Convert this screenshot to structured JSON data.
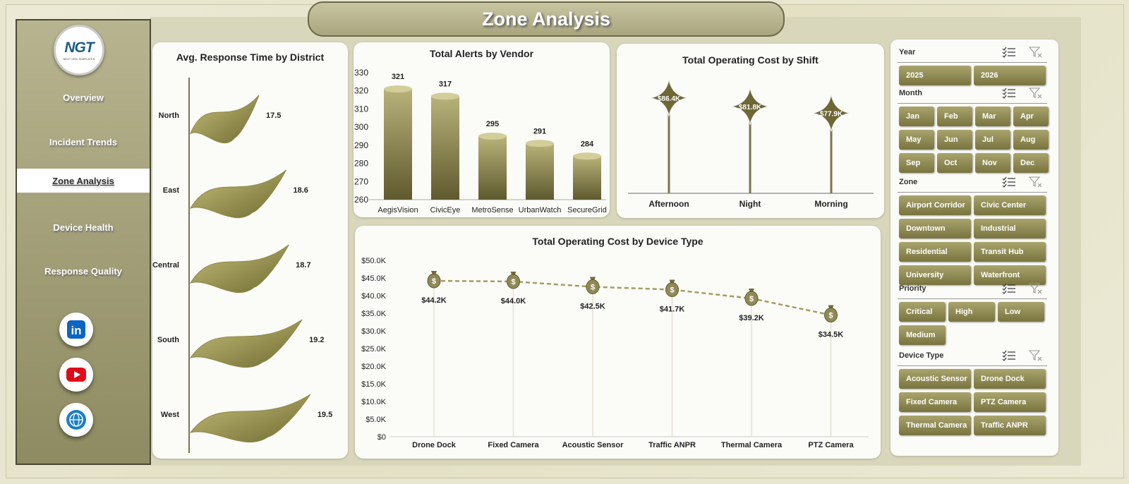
{
  "header": {
    "title": "Zone Analysis"
  },
  "logo": {
    "text": "NGT",
    "tagline": "NEXT GEN TEMPLATES"
  },
  "sidebar": {
    "items": [
      {
        "label": "Overview",
        "active": false
      },
      {
        "label": "Incident Trends",
        "active": false
      },
      {
        "label": "Zone Analysis",
        "active": true
      },
      {
        "label": "Device Health",
        "active": false
      },
      {
        "label": "Response Quality",
        "active": false
      }
    ],
    "social": [
      {
        "icon": "linkedin-icon",
        "text": "in",
        "color": "#0a66c2"
      },
      {
        "icon": "youtube-icon",
        "color": "#e10b17"
      },
      {
        "icon": "globe-icon",
        "color": "#1b7fc4"
      }
    ]
  },
  "colors": {
    "accent": "#9e9a5a",
    "accent_dark": "#6d6836",
    "line": "#a39d62"
  },
  "chart_data": [
    {
      "id": "response",
      "type": "bar",
      "title": "Avg. Response Time by District",
      "orientation": "horizontal",
      "categories": [
        "North",
        "East",
        "Central",
        "South",
        "West"
      ],
      "values": [
        17.5,
        18.6,
        18.7,
        19.2,
        19.5
      ],
      "labels": [
        "17.5",
        "18.6",
        "18.7",
        "19.2",
        "19.5"
      ]
    },
    {
      "id": "alerts",
      "type": "bar",
      "title": "Total Alerts by Vendor",
      "categories": [
        "AegisVision",
        "CivicEye",
        "MetroSense",
        "UrbanWatch",
        "SecureGrid"
      ],
      "values": [
        321,
        317,
        295,
        291,
        284
      ],
      "ylim": [
        260,
        330
      ],
      "yticks": [
        "260",
        "270",
        "280",
        "290",
        "300",
        "310",
        "320",
        "330"
      ]
    },
    {
      "id": "shift",
      "type": "bar",
      "title": "Total Operating Cost by Shift",
      "categories": [
        "Afternoon",
        "Night",
        "Morning"
      ],
      "values": [
        86.4,
        81.8,
        77.9
      ],
      "labels": [
        "$86.4K",
        "$81.8K",
        "$77.9K"
      ]
    },
    {
      "id": "device",
      "type": "line",
      "title": "Total Operating Cost by Device Type",
      "categories": [
        "Drone Dock",
        "Fixed Camera",
        "Acoustic Sensor",
        "Traffic ANPR",
        "Thermal Camera",
        "PTZ Camera"
      ],
      "values": [
        44.2,
        44.0,
        42.5,
        41.7,
        39.2,
        34.5
      ],
      "labels": [
        "$44.2K",
        "$44.0K",
        "$42.5K",
        "$41.7K",
        "$39.2K",
        "$34.5K"
      ],
      "ylim": [
        0,
        50
      ],
      "yticks": [
        "$0",
        "$5.0K",
        "$10.0K",
        "$15.0K",
        "$20.0K",
        "$25.0K",
        "$30.0K",
        "$35.0K",
        "$40.0K",
        "$45.0K",
        "$50.0K"
      ],
      "marker_icon": "money-bag-icon"
    }
  ],
  "filters": [
    {
      "label": "Year",
      "cols": 2,
      "options": [
        "2025",
        "2026"
      ]
    },
    {
      "label": "Month",
      "cols": 4,
      "options": [
        "Jan",
        "Feb",
        "Mar",
        "Apr",
        "May",
        "Jun",
        "Jul",
        "Aug",
        "Sep",
        "Oct",
        "Nov",
        "Dec"
      ]
    },
    {
      "label": "Zone",
      "cols": 2,
      "options": [
        "Airport Corridor",
        "Civic Center",
        "Downtown",
        "Industrial",
        "Residential",
        "Transit Hub",
        "University",
        "Waterfront"
      ]
    },
    {
      "label": "Priority",
      "cols": 3,
      "options": [
        "Critical",
        "High",
        "Low",
        "Medium"
      ]
    },
    {
      "label": "Device Type",
      "cols": 2,
      "options": [
        "Acoustic Sensor",
        "Drone Dock",
        "Fixed Camera",
        "PTZ Camera",
        "Thermal Camera",
        "Traffic ANPR"
      ]
    }
  ]
}
